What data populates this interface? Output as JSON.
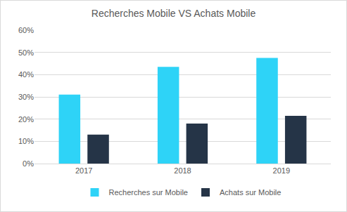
{
  "chart_data": {
    "type": "bar",
    "title": "Recherches Mobile VS Achats Mobile",
    "categories": [
      "2017",
      "2018",
      "2019"
    ],
    "series": [
      {
        "name": "Recherches sur Mobile",
        "color": "#2ed3f7",
        "values": [
          31,
          43.5,
          47.5
        ]
      },
      {
        "name": "Achats sur Mobile",
        "color": "#253447",
        "values": [
          13,
          18,
          21.5
        ]
      }
    ],
    "ylim": [
      0,
      60
    ],
    "yticks": [
      {
        "value": 0,
        "label": "0%"
      },
      {
        "value": 10,
        "label": "10%"
      },
      {
        "value": 20,
        "label": "20%"
      },
      {
        "value": 30,
        "label": "30%"
      },
      {
        "value": 40,
        "label": "40%"
      },
      {
        "value": 50,
        "label": "50%"
      },
      {
        "value": 60,
        "label": "60%"
      }
    ],
    "grid": true,
    "legend": "bottom"
  }
}
